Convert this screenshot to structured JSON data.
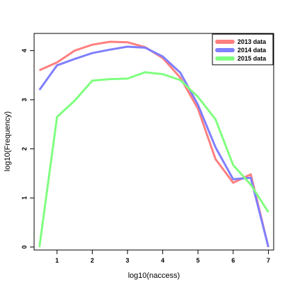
{
  "chart_data": {
    "type": "line",
    "title": "",
    "xlabel": "log10(naccess)",
    "ylabel": "log10(Frequency)",
    "xlim": [
      0.35,
      7.15
    ],
    "ylim": [
      -0.06,
      4.35
    ],
    "x_ticks": [
      1,
      2,
      3,
      4,
      5,
      6,
      7
    ],
    "y_ticks": [
      0,
      1,
      2,
      3,
      4
    ],
    "grid": false,
    "legend_position": "top-right",
    "x": [
      0.5,
      1.0,
      1.5,
      2.0,
      2.5,
      3.0,
      3.5,
      4.0,
      4.5,
      5.0,
      5.5,
      6.0,
      6.5,
      7.0
    ],
    "series": [
      {
        "name": "2013 data",
        "color": "#ff7f7f",
        "values": [
          3.6,
          3.76,
          4.0,
          4.12,
          4.18,
          4.17,
          4.07,
          3.85,
          3.45,
          2.82,
          1.79,
          1.31,
          1.48,
          0.0
        ]
      },
      {
        "name": "2014 data",
        "color": "#7f7fff",
        "values": [
          3.2,
          3.7,
          3.83,
          3.95,
          4.02,
          4.08,
          4.06,
          3.88,
          3.55,
          2.9,
          2.03,
          1.38,
          1.41,
          0.0
        ]
      },
      {
        "name": "2015 data",
        "color": "#7fff7f",
        "values": [
          0.0,
          2.65,
          2.98,
          3.39,
          3.42,
          3.43,
          3.56,
          3.52,
          3.4,
          3.06,
          2.6,
          1.67,
          1.27,
          0.71
        ]
      }
    ]
  }
}
